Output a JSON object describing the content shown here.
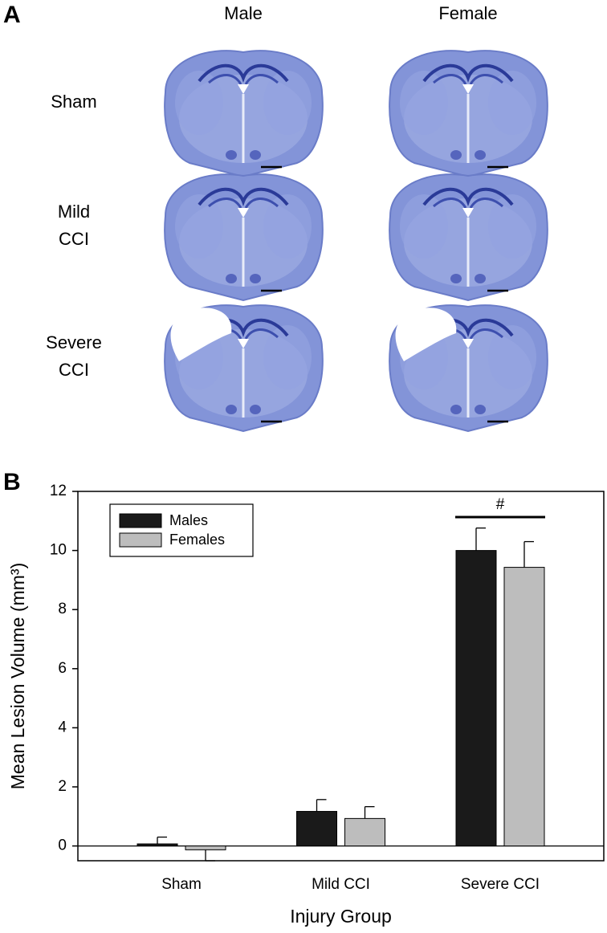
{
  "panel_a": {
    "label": "A",
    "columns": [
      "Male",
      "Female"
    ],
    "rows": [
      [
        "Sham"
      ],
      [
        "Mild",
        "CCI"
      ],
      [
        "Severe",
        "CCI"
      ]
    ]
  },
  "chart_data": {
    "type": "bar",
    "panel_label": "B",
    "x_label": "Injury Group",
    "y_label": "Mean Lesion Volume (mm³)",
    "categories": [
      "Sham",
      "Mild CCI",
      "Severe CCI"
    ],
    "series": [
      {
        "name": "Males",
        "color": "#1a1a1a",
        "values": [
          0.07,
          1.17,
          10.0
        ],
        "errors": [
          0.23,
          0.4,
          0.76
        ]
      },
      {
        "name": "Females",
        "color": "#bdbdbd",
        "values": [
          -0.13,
          0.93,
          9.43
        ],
        "errors": [
          0.37,
          0.4,
          0.87
        ]
      }
    ],
    "ylim": [
      -0.5,
      12
    ],
    "yticks": [
      0,
      2,
      4,
      6,
      8,
      10,
      12
    ],
    "legend": "upper-left",
    "annotation": {
      "text": "#",
      "category": 2
    }
  }
}
